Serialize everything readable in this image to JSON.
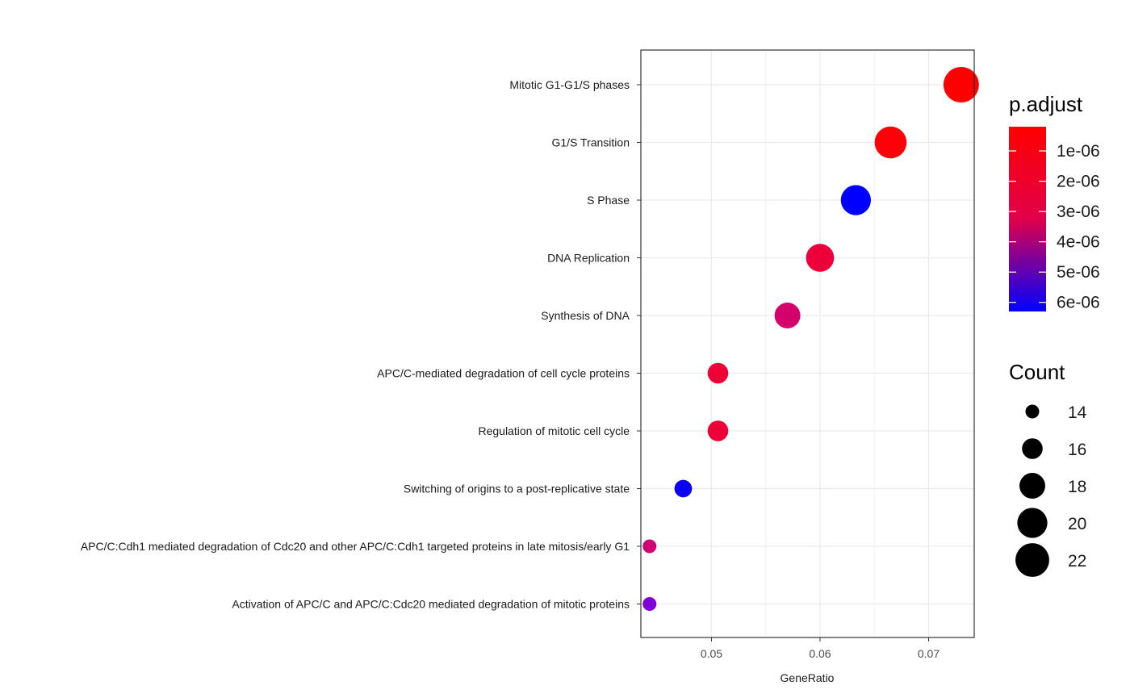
{
  "chart_data": {
    "type": "scatter",
    "xlabel": "GeneRatio",
    "ylabel": "",
    "xlim": [
      0.0435,
      0.0742
    ],
    "x_ticks": [
      {
        "value": 0.05,
        "label": "0.05"
      },
      {
        "value": 0.06,
        "label": "0.06"
      },
      {
        "value": 0.07,
        "label": "0.07"
      }
    ],
    "grid": true,
    "categories": [
      "Mitotic G1-G1/S phases",
      "G1/S Transition",
      "S Phase",
      "DNA Replication",
      "Synthesis of DNA",
      "APC/C-mediated degradation of cell cycle proteins",
      "Regulation of mitotic cell cycle",
      "Switching of origins to a post-replicative state",
      "APC/C:Cdh1 mediated degradation of Cdc20 and other APC/C:Cdh1 targeted proteins in late mitosis/early G1",
      "Activation of APC/C and APC/C:Cdc20 mediated degradation of mitotic proteins"
    ],
    "points": [
      {
        "term": "Mitotic G1-G1/S phases",
        "x": 0.073,
        "count": 23,
        "p_adjust": 2e-07,
        "color": "#ff0000"
      },
      {
        "term": "G1/S Transition",
        "x": 0.0665,
        "count": 21,
        "p_adjust": 3e-07,
        "color": "#ff0008"
      },
      {
        "term": "S Phase",
        "x": 0.0633,
        "count": 20,
        "p_adjust": 6.2e-06,
        "color": "#0000ff"
      },
      {
        "term": "DNA Replication",
        "x": 0.06,
        "count": 19,
        "p_adjust": 1.8e-06,
        "color": "#ed003a"
      },
      {
        "term": "Synthesis of DNA",
        "x": 0.057,
        "count": 18,
        "p_adjust": 3.2e-06,
        "color": "#d4006b"
      },
      {
        "term": "APC/C-mediated degradation of cell cycle proteins",
        "x": 0.0506,
        "count": 16,
        "p_adjust": 1.8e-06,
        "color": "#ee0037"
      },
      {
        "term": "Regulation of mitotic cell cycle",
        "x": 0.0506,
        "count": 16,
        "p_adjust": 1.8e-06,
        "color": "#ee0037"
      },
      {
        "term": "Switching of origins to a post-replicative state",
        "x": 0.0474,
        "count": 15,
        "p_adjust": 6.1e-06,
        "color": "#0a00f5"
      },
      {
        "term": "APC/C:Cdh1 mediated degradation of Cdc20 and other APC/C:Cdh1 targeted proteins in late mitosis/early G1",
        "x": 0.0443,
        "count": 14,
        "p_adjust": 3.3e-06,
        "color": "#d00075"
      },
      {
        "term": "Activation of APC/C and APC/C:Cdc20 mediated degradation of mitotic proteins",
        "x": 0.0443,
        "count": 14,
        "p_adjust": 4.6e-06,
        "color": "#8000d8"
      }
    ],
    "legend": {
      "color_title": "p.adjust",
      "color_range": [
        2e-07,
        6.3e-06
      ],
      "color_low": "#ff0000",
      "color_high": "#0000ff",
      "color_ticks": [
        {
          "value": 1e-06,
          "label": "1e-06"
        },
        {
          "value": 2e-06,
          "label": "2e-06"
        },
        {
          "value": 3e-06,
          "label": "3e-06"
        },
        {
          "value": 4e-06,
          "label": "4e-06"
        },
        {
          "value": 5e-06,
          "label": "5e-06"
        },
        {
          "value": 6e-06,
          "label": "6e-06"
        }
      ],
      "size_title": "Count",
      "size_range": [
        14,
        23
      ],
      "size_entries": [
        {
          "value": 14,
          "label": "14"
        },
        {
          "value": 16,
          "label": "16"
        },
        {
          "value": 18,
          "label": "18"
        },
        {
          "value": 20,
          "label": "20"
        },
        {
          "value": 22,
          "label": "22"
        }
      ],
      "placement": "right"
    }
  }
}
